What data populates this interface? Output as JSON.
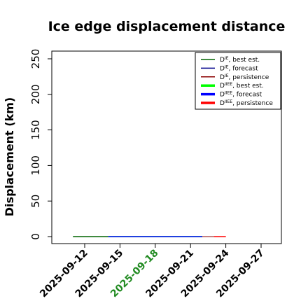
{
  "chart_data": {
    "type": "line",
    "title": "Ice edge displacement distance",
    "xlabel": "",
    "ylabel": "Displacement (km)",
    "x_ticks": [
      "2025-09-12",
      "2025-09-15",
      "2025-09-18",
      "2025-09-21",
      "2025-09-24",
      "2025-09-27"
    ],
    "highlight_tick": "2025-09-18",
    "highlight_color": "#228B22",
    "xlim": [
      "2025-09-09",
      "2025-09-28"
    ],
    "ylim": [
      0,
      250
    ],
    "y_ticks": [
      0,
      50,
      100,
      150,
      200,
      250
    ],
    "grid": false,
    "legend_position": "top-right",
    "legend": [
      {
        "sym": "D",
        "sup": "IE",
        "text": ", best est.",
        "color": "#006400",
        "bold": false
      },
      {
        "sym": "D",
        "sup": "IE",
        "text": ", forecast",
        "color": "#00008B",
        "bold": false
      },
      {
        "sym": "D",
        "sup": "IE",
        "text": ", persistence",
        "color": "#8B0000",
        "bold": false
      },
      {
        "sym": "D",
        "sup": "IIEE",
        "text": ", best est.",
        "color": "#00FF00",
        "bold": true
      },
      {
        "sym": "D",
        "sup": "IIEE",
        "text": ", forecast",
        "color": "#0000FF",
        "bold": true
      },
      {
        "sym": "D",
        "sup": "IIEE",
        "text": ", persistence",
        "color": "#FF0000",
        "bold": true
      }
    ],
    "series": [
      {
        "name": "DIE, best est.",
        "color": "#006400",
        "width": 1.5,
        "x": [
          "2025-09-11",
          "2025-09-14"
        ],
        "y": [
          0,
          0
        ]
      },
      {
        "name": "DIE, forecast",
        "color": "#00008B",
        "width": 1,
        "x": [
          "2025-09-14",
          "2025-09-22"
        ],
        "y": [
          0,
          0
        ]
      },
      {
        "name": "DIE, persistence",
        "color": "#8B0000",
        "width": 1,
        "x": [
          "2025-09-21",
          "2025-09-24"
        ],
        "y": [
          0,
          0
        ]
      },
      {
        "name": "DIIEE, best est.",
        "color": "#00FF00",
        "width": 1.5,
        "x": [
          "2025-09-14",
          "2025-09-22"
        ],
        "y": [
          0,
          0
        ]
      },
      {
        "name": "DIIEE, forecast",
        "color": "#0000FF",
        "width": 1.5,
        "x": [
          "2025-09-14",
          "2025-09-22"
        ],
        "y": [
          0,
          0
        ]
      },
      {
        "name": "DIIEE, persistence",
        "color": "#FF0000",
        "width": 1.5,
        "x": [
          "2025-09-23",
          "2025-09-24"
        ],
        "y": [
          0,
          0
        ]
      }
    ]
  }
}
